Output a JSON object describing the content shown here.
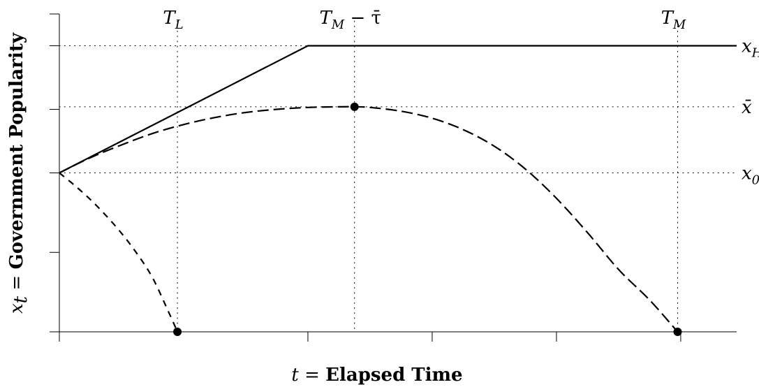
{
  "chart_data": {
    "type": "line",
    "title": "",
    "xlabel": {
      "var": "t",
      "eq": " = ",
      "text": "Elapsed Time"
    },
    "ylabel": {
      "var": "x",
      "sub": "t",
      "eq": " = ",
      "text": "Government Popularity"
    },
    "xlim": [
      0,
      10.9
    ],
    "ylim": [
      -2.5,
      2.5
    ],
    "xticks": [
      0,
      4,
      6,
      8,
      10
    ],
    "yticks": [
      -2.5,
      -1.25,
      0,
      1,
      2,
      2.5
    ],
    "grid": false,
    "vlines": [
      {
        "x": 1.9,
        "label": "T_L",
        "main": "T",
        "sub": "L"
      },
      {
        "x": 4.75,
        "label": "T_M − τ̄",
        "main": "T",
        "sub": "M",
        "extra": " − τ̄"
      },
      {
        "x": 9.95,
        "label": "T_M",
        "main": "T",
        "sub": "M"
      }
    ],
    "hlines": [
      {
        "y": 2.0,
        "label": "x_H",
        "main": "x",
        "sub": "H"
      },
      {
        "y": 1.04,
        "label": "x̄",
        "main": "x̄",
        "sub": ""
      },
      {
        "y": 0,
        "label": "x_0",
        "main": "x",
        "sub": "0"
      }
    ],
    "series": [
      {
        "style": "solid",
        "x": [
          0,
          4.0,
          10.9
        ],
        "y": [
          0,
          2.0,
          2.0
        ]
      },
      {
        "style": "longdash",
        "x": [
          0,
          0.5,
          1.0,
          1.5,
          2.0,
          2.5,
          3.0,
          3.5,
          4.0,
          4.5,
          4.75,
          5.0,
          5.5,
          6.0,
          6.5,
          7.0,
          7.5,
          8.0,
          8.5,
          9.0,
          9.5,
          9.95
        ],
        "y": [
          0,
          0.24,
          0.44,
          0.62,
          0.76,
          0.87,
          0.95,
          1.0,
          1.03,
          1.04,
          1.04,
          1.03,
          0.97,
          0.86,
          0.68,
          0.42,
          0.06,
          -0.4,
          -0.94,
          -1.52,
          -2.0,
          -2.5
        ]
      },
      {
        "style": "shortdash",
        "x": [
          0,
          0.25,
          0.5,
          0.75,
          1.0,
          1.25,
          1.5,
          1.75,
          1.9
        ],
        "y": [
          0,
          -0.2,
          -0.42,
          -0.67,
          -0.95,
          -1.27,
          -1.65,
          -2.17,
          -2.5
        ]
      }
    ],
    "points": [
      {
        "x": 4.75,
        "y": 1.04
      },
      {
        "x": 1.9,
        "y": -2.5
      },
      {
        "x": 9.95,
        "y": -2.5
      }
    ]
  }
}
